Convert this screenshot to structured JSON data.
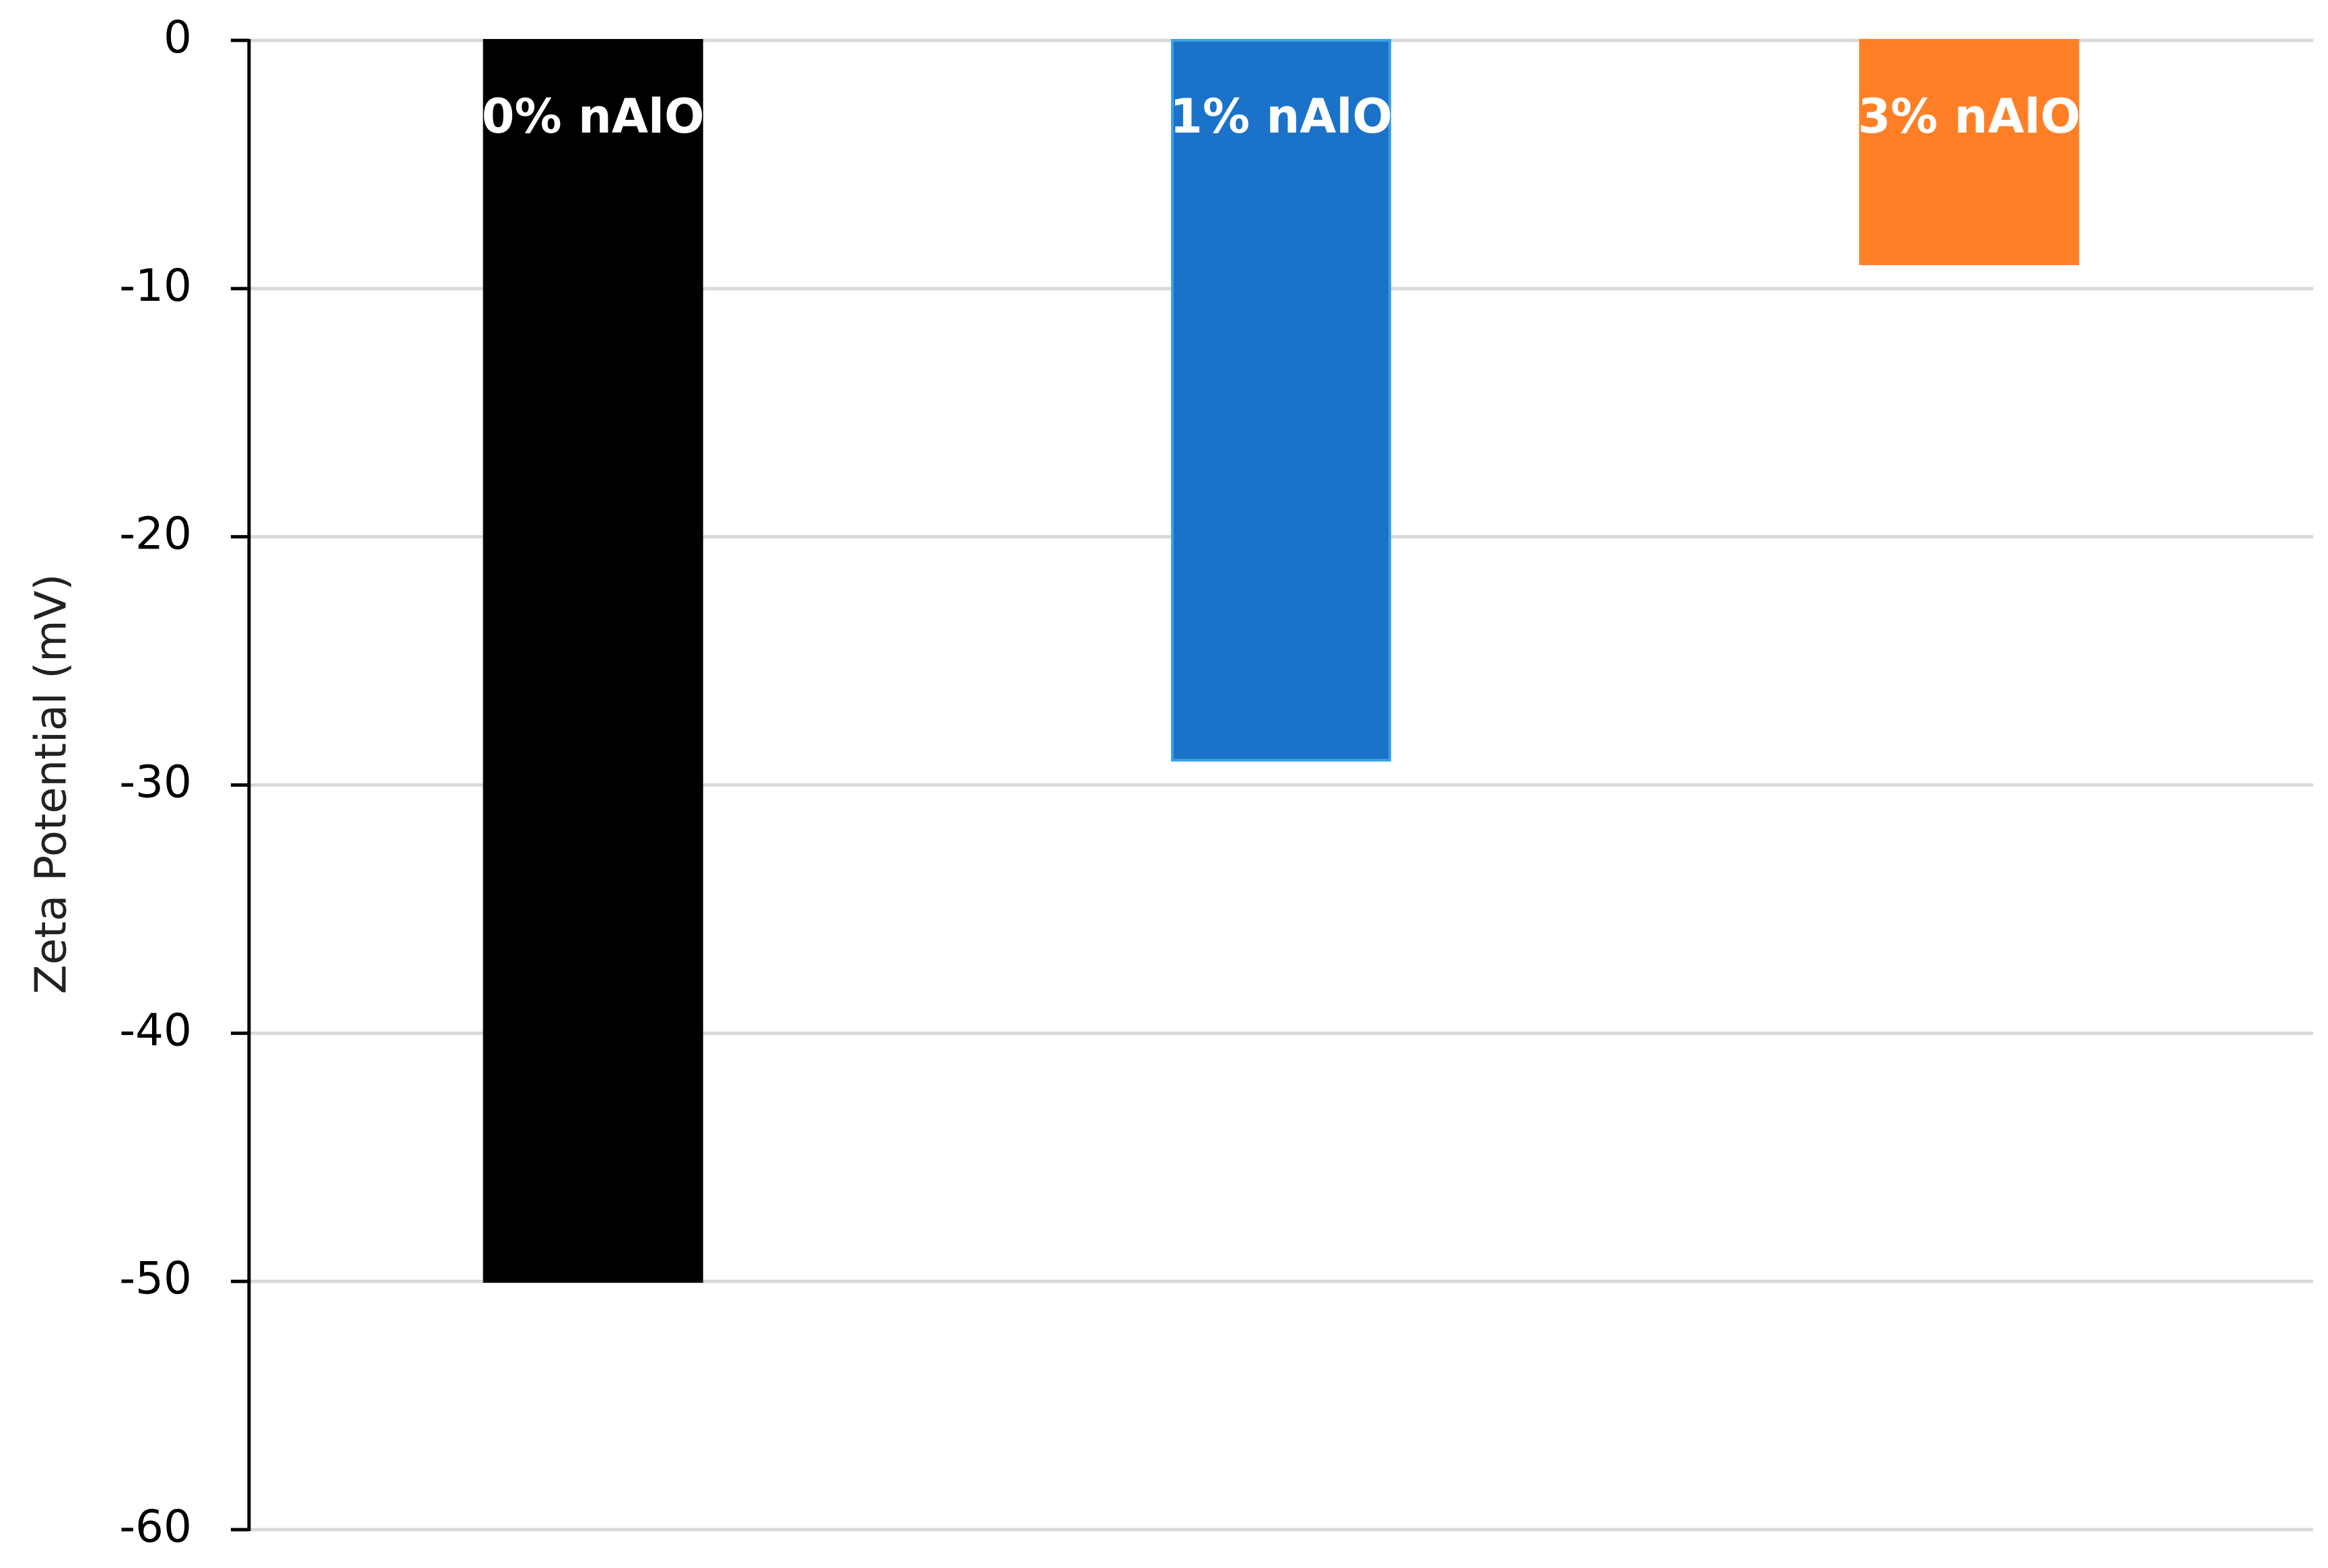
{
  "chart_data": {
    "type": "bar",
    "y_label": "Zeta Potential (mV)",
    "categories": [
      "0% nAlO",
      "1% nAlO",
      "3% nAlO"
    ],
    "values": [
      -50,
      -29,
      -9
    ],
    "colors": [
      "#000000",
      "#1a73c8",
      "#ff7f27"
    ],
    "ylim": [
      -60,
      0
    ],
    "yticks": [
      -60,
      -50,
      -40,
      -30,
      -20,
      -10,
      0
    ],
    "grid": true
  }
}
